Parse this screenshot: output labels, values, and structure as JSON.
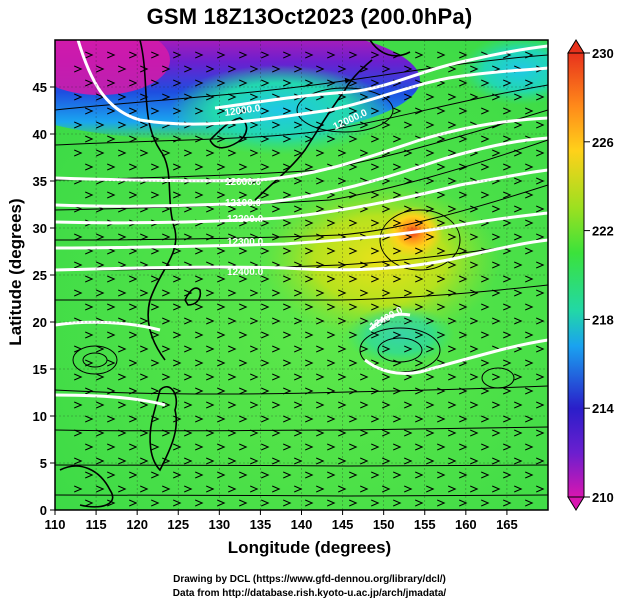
{
  "title": "GSM 18Z13Oct2023 (200.0hPa)",
  "xaxis": {
    "label": "Longitude (degrees)",
    "ticks": [
      "110",
      "115",
      "120",
      "125",
      "130",
      "135",
      "140",
      "145",
      "150",
      "155",
      "160",
      "165"
    ],
    "range": [
      110,
      170
    ]
  },
  "yaxis": {
    "label": "Latitude  (degrees)",
    "ticks": [
      "0",
      "5",
      "10",
      "15",
      "20",
      "25",
      "30",
      "35",
      "40",
      "45"
    ],
    "range": [
      0,
      50
    ]
  },
  "colorbar": {
    "labels": [
      "230",
      "226",
      "222",
      "218",
      "214",
      "210"
    ],
    "values": [
      230,
      226,
      222,
      218,
      214,
      210
    ],
    "range": [
      210,
      230
    ],
    "colors": [
      "#d816b0",
      "#2a1ec9",
      "#1aa2f0",
      "#22d8a6",
      "#3be23b",
      "#9be020",
      "#ffd11a",
      "#ff8a1a",
      "#e8321c"
    ]
  },
  "contours": {
    "color": "#ffffff",
    "labels": [
      "12000.0",
      "12000.0",
      "12000.0",
      "12100.0",
      "12200.0",
      "12300.0",
      "12400.0",
      "12400.0"
    ]
  },
  "credits": {
    "line1": "Drawing by DCL (https://www.gfd-dennou.org/library/dcl/)",
    "line2": "Data from http://database.rish.kyoto-u.ac.jp/arch/jmadata/"
  }
}
